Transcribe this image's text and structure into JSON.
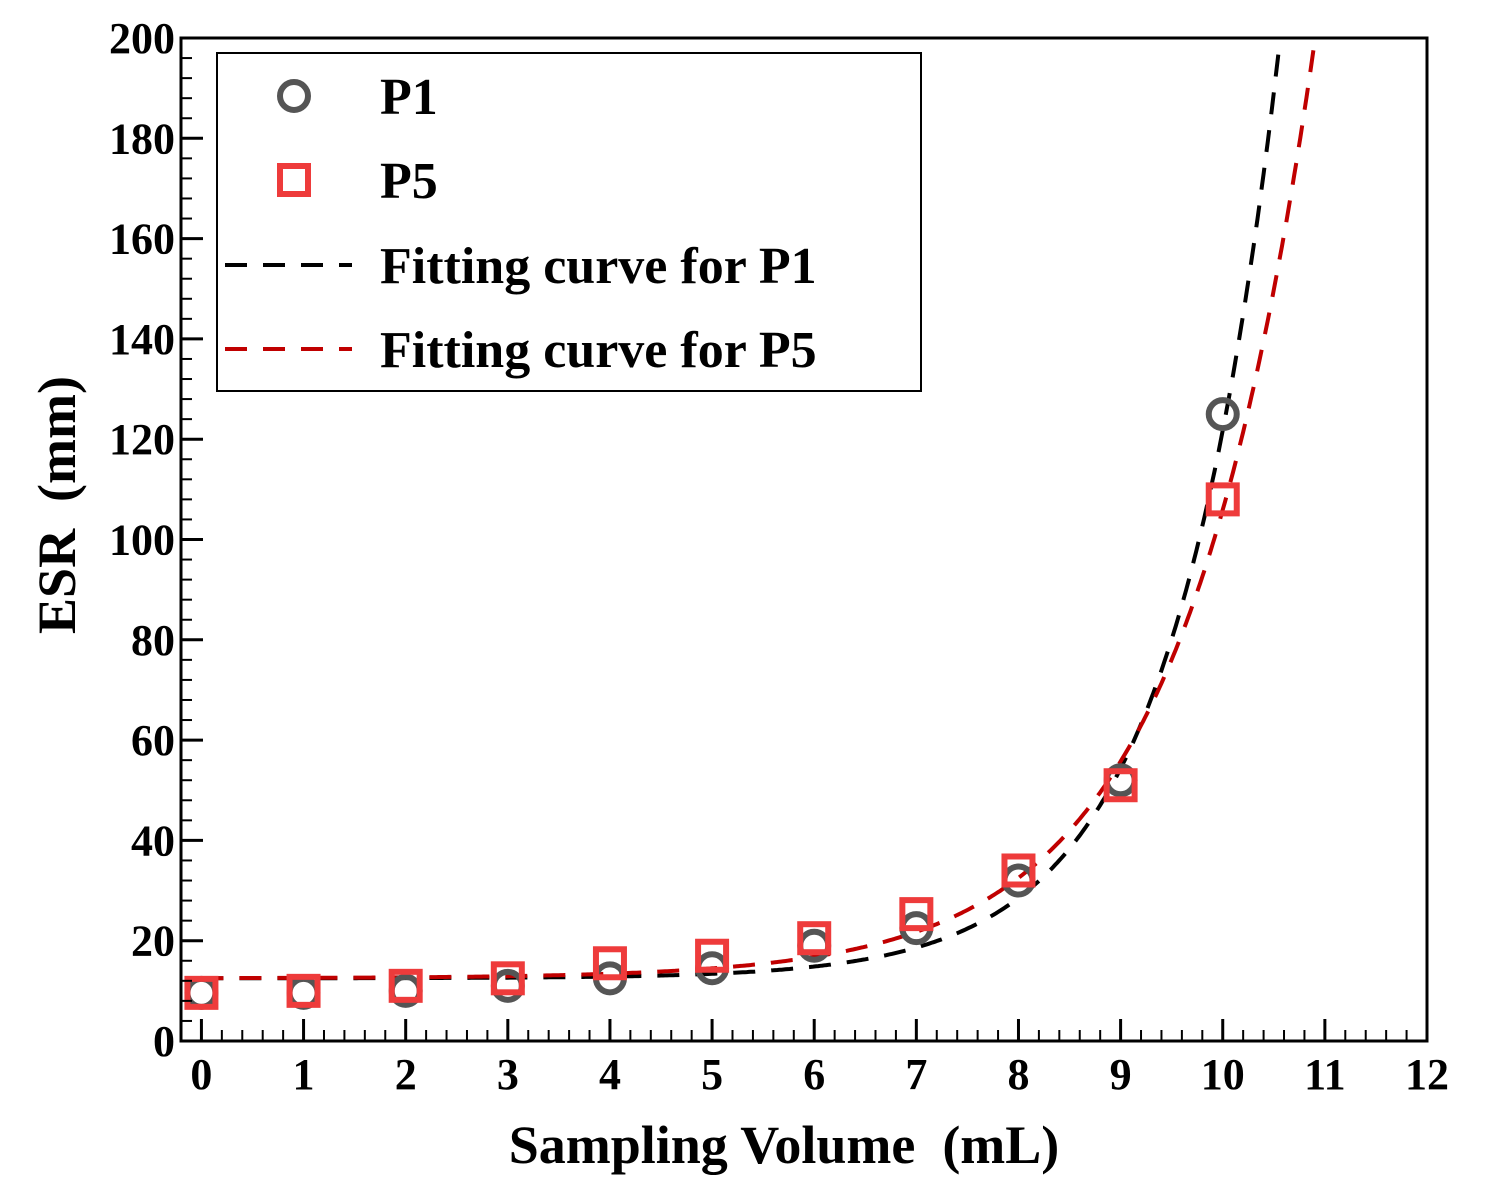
{
  "chart_data": {
    "type": "scatter",
    "title": "",
    "xlabel": "Sampling Volume  (mL)",
    "ylabel": "ESR  (mm)",
    "xlim": [
      -0.2,
      12
    ],
    "ylim": [
      0,
      200
    ],
    "xticks": [
      0,
      1,
      2,
      3,
      4,
      5,
      6,
      7,
      8,
      9,
      10,
      11,
      12
    ],
    "yticks": [
      0,
      20,
      40,
      60,
      80,
      100,
      120,
      140,
      160,
      180,
      200
    ],
    "grid": false,
    "legend_position": "top-left",
    "series": [
      {
        "name": "P1",
        "kind": "marker",
        "marker": "circle",
        "color": "#555555",
        "x": [
          0,
          1,
          2,
          3,
          4,
          5,
          6,
          7,
          8,
          9,
          10
        ],
        "y": [
          9.6,
          9.6,
          10,
          11,
          12.5,
          14.5,
          19,
          22.5,
          32,
          52,
          125
        ]
      },
      {
        "name": "P5",
        "kind": "marker",
        "marker": "square",
        "color": "#ee3b3b",
        "x": [
          0,
          1,
          2,
          3,
          4,
          5,
          6,
          7,
          8,
          9,
          10
        ],
        "y": [
          9.6,
          10,
          11,
          12.5,
          15.5,
          17,
          20.5,
          25.3,
          34,
          51,
          108
        ]
      },
      {
        "name": "Fitting curve for P1",
        "kind": "dashed-line",
        "color": "#000000",
        "model": {
          "a": 12.5,
          "b": 0.0074,
          "c": 0.96
        }
      },
      {
        "name": "Fitting curve for P5",
        "kind": "dashed-line",
        "color": "#c00000",
        "model": {
          "a": 12.5,
          "b": 0.0423,
          "c": 0.77
        }
      }
    ]
  }
}
